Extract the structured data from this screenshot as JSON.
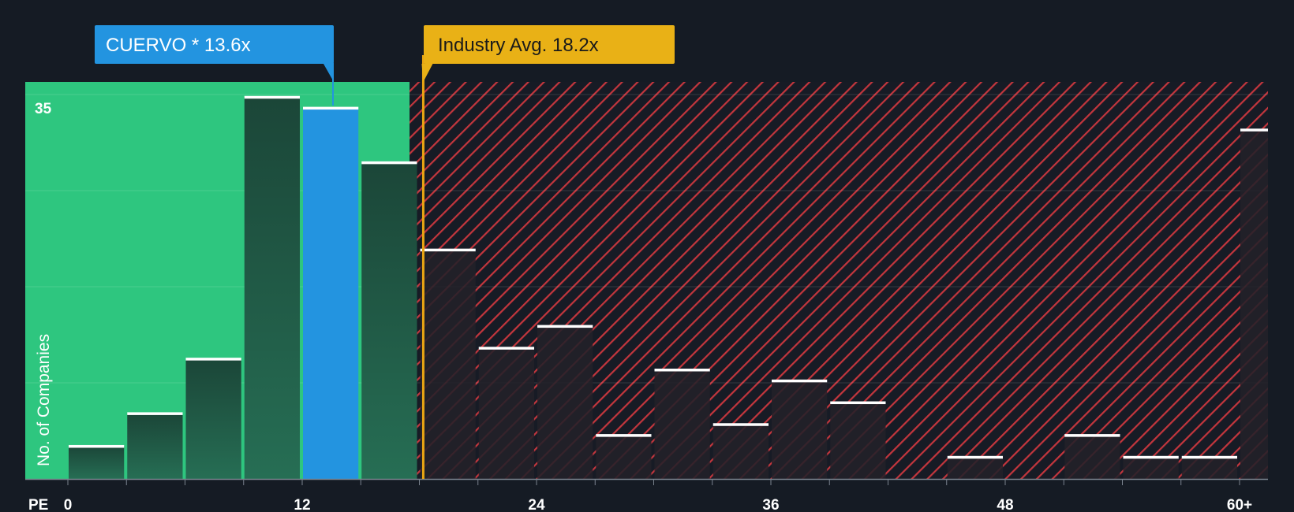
{
  "chart_data": {
    "type": "bar",
    "title": "",
    "xlabel": "PE",
    "ylabel": "No. of Companies",
    "ytick_label": "35",
    "ylim": [
      0,
      36.3
    ],
    "xlim": [
      0,
      61.5
    ],
    "x_ticks": [
      {
        "value": 0,
        "label": "0"
      },
      {
        "value": 12,
        "label": "12"
      },
      {
        "value": 24,
        "label": "24"
      },
      {
        "value": 36,
        "label": "36"
      },
      {
        "value": 48,
        "label": "48"
      },
      {
        "value": 60,
        "label": "60+"
      }
    ],
    "bins": [
      {
        "start": 0,
        "end": 3,
        "count": 3
      },
      {
        "start": 3,
        "end": 6,
        "count": 6
      },
      {
        "start": 6,
        "end": 9,
        "count": 11
      },
      {
        "start": 9,
        "end": 12,
        "count": 35
      },
      {
        "start": 12,
        "end": 15,
        "count": 34,
        "highlight": true
      },
      {
        "start": 15,
        "end": 18,
        "count": 29
      },
      {
        "start": 18,
        "end": 21,
        "count": 21
      },
      {
        "start": 21,
        "end": 24,
        "count": 12
      },
      {
        "start": 24,
        "end": 27,
        "count": 14
      },
      {
        "start": 27,
        "end": 30,
        "count": 4
      },
      {
        "start": 30,
        "end": 33,
        "count": 10
      },
      {
        "start": 33,
        "end": 36,
        "count": 5
      },
      {
        "start": 36,
        "end": 39,
        "count": 9
      },
      {
        "start": 39,
        "end": 42,
        "count": 7
      },
      {
        "start": 42,
        "end": 45,
        "count": 0
      },
      {
        "start": 45,
        "end": 48,
        "count": 2
      },
      {
        "start": 48,
        "end": 51,
        "count": 0
      },
      {
        "start": 51,
        "end": 54,
        "count": 4
      },
      {
        "start": 54,
        "end": 57,
        "count": 2
      },
      {
        "start": 57,
        "end": 60,
        "count": 2
      },
      {
        "start": 60,
        "end": 63,
        "count": 32
      }
    ],
    "company": {
      "label": "CUERVO * 13.6x",
      "value": 13.6
    },
    "industry": {
      "label": "Industry Avg. 18.2x",
      "value": 18.2
    },
    "undervalued_until": 17.5
  },
  "colors": {
    "background": "#151b24",
    "green_zone": "#2ec67f",
    "bar_in_green": "#1e4e40",
    "bar_in_red": "#232129",
    "highlight_bar": "#2394e0",
    "bar_cap": "#ffffff",
    "red_stripe": "#c3363d",
    "company_callout": "#2394e0",
    "industry_callout": "#e9b116",
    "industry_line": "#e9a513",
    "axis": "#7a838e",
    "text_light": "#ffffff",
    "text_dark": "#1a1a1a"
  }
}
